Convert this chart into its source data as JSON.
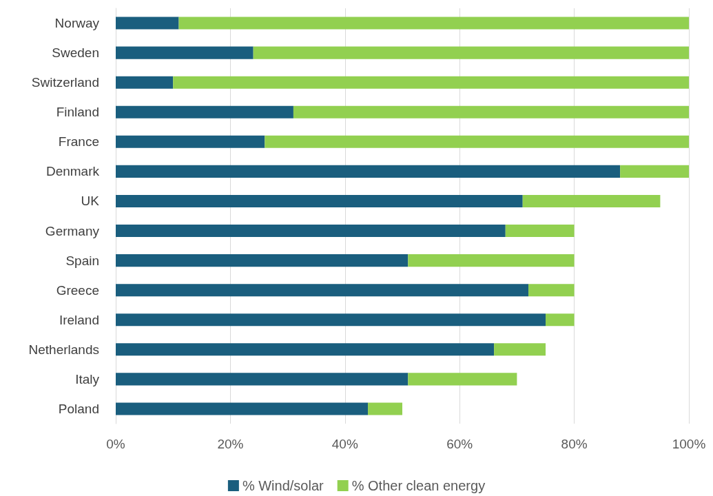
{
  "chart_data": {
    "type": "bar",
    "orientation": "horizontal",
    "stacked": true,
    "categories": [
      "Norway",
      "Sweden",
      "Switzerland",
      "Finland",
      "France",
      "Denmark",
      "UK",
      "Germany",
      "Spain",
      "Greece",
      "Ireland",
      "Netherlands",
      "Italy",
      "Poland"
    ],
    "series": [
      {
        "name": "% Wind/solar",
        "color": "#1a5e7e",
        "values": [
          11,
          24,
          10,
          31,
          26,
          88,
          71,
          68,
          51,
          72,
          75,
          66,
          51,
          44
        ]
      },
      {
        "name": "% Other clean energy",
        "color": "#92d050",
        "values": [
          89,
          76,
          90,
          69,
          74,
          12,
          24,
          12,
          29,
          8,
          5,
          9,
          19,
          6
        ]
      }
    ],
    "xlim": [
      0,
      100
    ],
    "xticks": [
      {
        "value": 0,
        "label": "0%"
      },
      {
        "value": 20,
        "label": "20%"
      },
      {
        "value": 40,
        "label": "40%"
      },
      {
        "value": 60,
        "label": "60%"
      },
      {
        "value": 80,
        "label": "80%"
      },
      {
        "value": 100,
        "label": "100%"
      }
    ],
    "grid": "x",
    "legend": "bottom"
  }
}
